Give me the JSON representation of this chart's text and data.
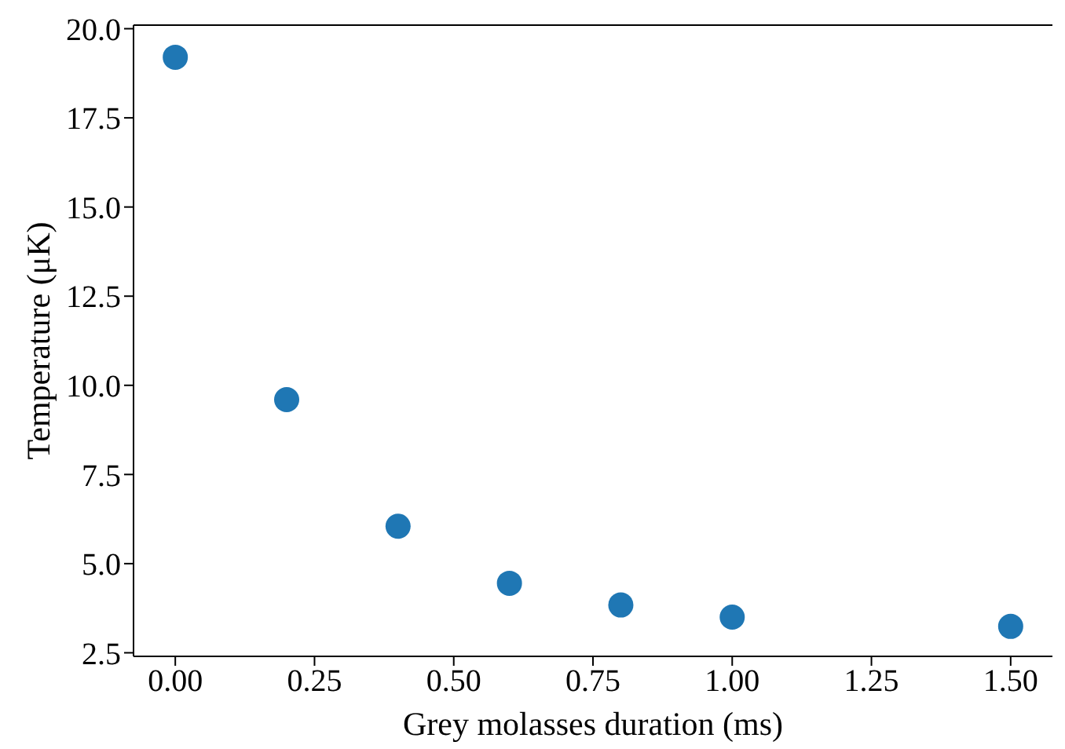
{
  "chart_data": {
    "type": "scatter",
    "xlabel": "Grey molasses duration (ms)",
    "ylabel": "Temperature (μK)",
    "x": [
      0,
      0.2,
      0.4,
      0.6,
      0.8,
      1.0,
      1.5
    ],
    "series": [
      {
        "color": "#1f77b4",
        "values": [
          19.2,
          9.6,
          6.05,
          4.45,
          3.84,
          3.5,
          3.24
        ]
      }
    ],
    "xlim": [
      -0.075,
      1.575
    ],
    "xticks": [
      {
        "value": 0,
        "label": "0.00"
      },
      {
        "value": 0.25,
        "label": "0.25"
      },
      {
        "value": 0.5,
        "label": "0.50"
      },
      {
        "value": 0.75,
        "label": "0.75"
      },
      {
        "value": 1,
        "label": "1.00"
      },
      {
        "value": 1.25,
        "label": "1.25"
      },
      {
        "value": 1.5,
        "label": "1.50"
      }
    ],
    "ylim": [
      2.4,
      20.1
    ],
    "yticks": [
      {
        "value": 2.5,
        "label": "2.5"
      },
      {
        "value": 5,
        "label": "5.0"
      },
      {
        "value": 7.5,
        "label": "7.5"
      },
      {
        "value": 10,
        "label": "10.0"
      },
      {
        "value": 12.5,
        "label": "12.5"
      },
      {
        "value": 15,
        "label": "15.0"
      },
      {
        "value": 17.5,
        "label": "17.5"
      },
      {
        "value": 20,
        "label": "20.0"
      }
    ],
    "marker": "circle",
    "grid": false,
    "legend": false
  }
}
